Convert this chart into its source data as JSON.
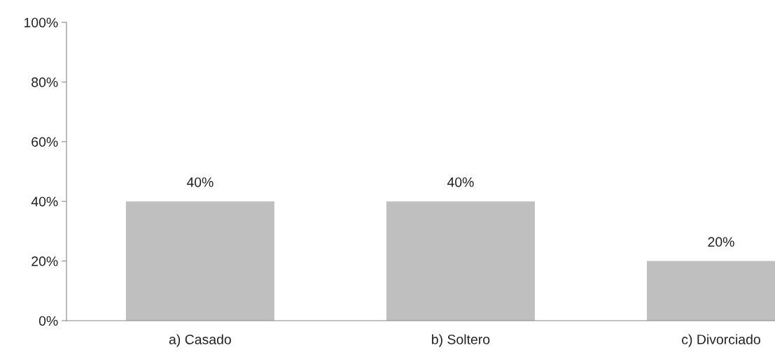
{
  "chart_data": {
    "type": "bar",
    "categories": [
      "a) Casado",
      "b) Soltero",
      "c) Divorciado"
    ],
    "values": [
      40,
      40,
      20
    ],
    "value_labels": [
      "40%",
      "40%",
      "20%"
    ],
    "color": "#bfbfbf",
    "ylim": [
      0,
      100
    ],
    "yticks": [
      {
        "value": 0,
        "label": "0%"
      },
      {
        "value": 20,
        "label": "20%"
      },
      {
        "value": 40,
        "label": "40%"
      },
      {
        "value": 60,
        "label": "60%"
      },
      {
        "value": 80,
        "label": "80%"
      },
      {
        "value": 100,
        "label": "100%"
      }
    ],
    "grid": false,
    "legend": false
  }
}
